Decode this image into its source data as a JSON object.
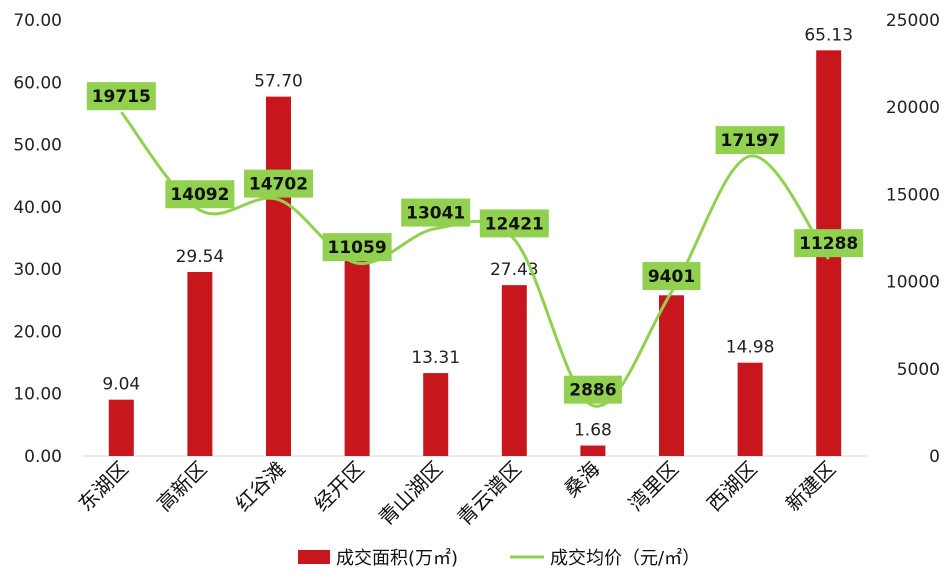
{
  "chart_data": {
    "type": "bar",
    "categories": [
      "东湖区",
      "高新区",
      "红谷滩",
      "经开区",
      "青山湖区",
      "青云谱区",
      "桑海",
      "湾里区",
      "西湖区",
      "新建区"
    ],
    "series": [
      {
        "name": "成交面积(万㎡)",
        "type": "bar",
        "axis": "left",
        "color": "#c8161d",
        "values": [
          9.04,
          29.54,
          57.7,
          32.0,
          13.31,
          27.43,
          1.68,
          25.8,
          14.98,
          65.13
        ],
        "labels": [
          "9.04",
          "29.54",
          "57.70",
          "",
          "13.31",
          "27.43",
          "1.68",
          "",
          "14.98",
          "65.13"
        ]
      },
      {
        "name": "成交均价（元/㎡）",
        "type": "line",
        "axis": "right",
        "color": "#92d050",
        "values": [
          19715,
          14092,
          14702,
          11059,
          13041,
          12421,
          2886,
          9401,
          17197,
          11288
        ],
        "labels": [
          "19715",
          "14092",
          "14702",
          "11059",
          "13041",
          "12421",
          "2886",
          "9401",
          "17197",
          "11288"
        ]
      }
    ],
    "left_axis": {
      "ylim": [
        0,
        70
      ],
      "ticks": [
        "0.00",
        "10.00",
        "20.00",
        "30.00",
        "40.00",
        "50.00",
        "60.00",
        "70.00"
      ]
    },
    "right_axis": {
      "ylim": [
        0,
        25000
      ],
      "ticks": [
        "0",
        "5000",
        "10000",
        "15000",
        "20000",
        "25000"
      ]
    },
    "legend": {
      "position": "bottom",
      "items": [
        "成交面积(万㎡)",
        "成交均价（元/㎡）"
      ]
    },
    "grid": false
  }
}
